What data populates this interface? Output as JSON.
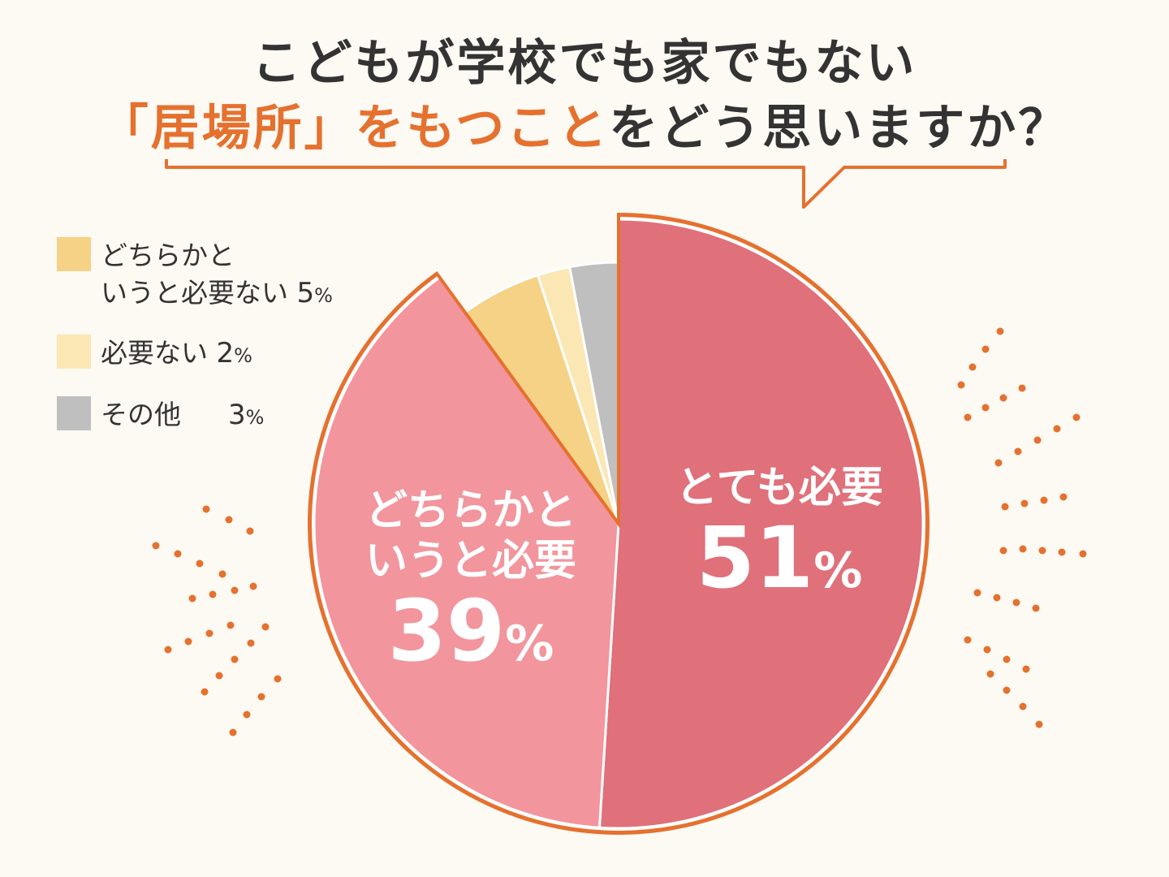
{
  "title": {
    "line1": "こどもが学校でも家でもない",
    "line2_highlight": "「居場所」をもつこと",
    "line2_rest": "をどう思いますか？"
  },
  "colors": {
    "accent": "#e5712f",
    "background": "#fdf9f3",
    "text": "#333333"
  },
  "chart_data": {
    "type": "pie",
    "slices": [
      {
        "label": "とても必要",
        "value": 51,
        "color": "#e0707a"
      },
      {
        "label": "どちらかというと必要",
        "value": 39,
        "color": "#f2959c"
      },
      {
        "label": "どちらかというと必要ない",
        "value": 5,
        "color": "#f5d286"
      },
      {
        "label": "必要ない",
        "value": 2,
        "color": "#fbe7b4"
      },
      {
        "label": "その他",
        "value": 3,
        "color": "#bfbfbf"
      }
    ],
    "unit": "%",
    "legend": [
      {
        "line1": "どちらかと",
        "line2": "いうと必要ない",
        "value": "5",
        "unit": "%",
        "color": "#f5d286"
      },
      {
        "line1": "必要ない",
        "line2": "",
        "value": "2",
        "unit": "%",
        "color": "#fbe7b4"
      },
      {
        "line1": "その他",
        "line2": "",
        "value": "3",
        "unit": "%",
        "color": "#bfbfbf"
      }
    ],
    "slice_labels": [
      {
        "line1": "とても必要",
        "line2": "",
        "value": "51",
        "unit": "%"
      },
      {
        "line1": "どちらかと",
        "line2": "いうと必要",
        "value": "39",
        "unit": "%"
      }
    ],
    "legend_position": "top-left"
  }
}
